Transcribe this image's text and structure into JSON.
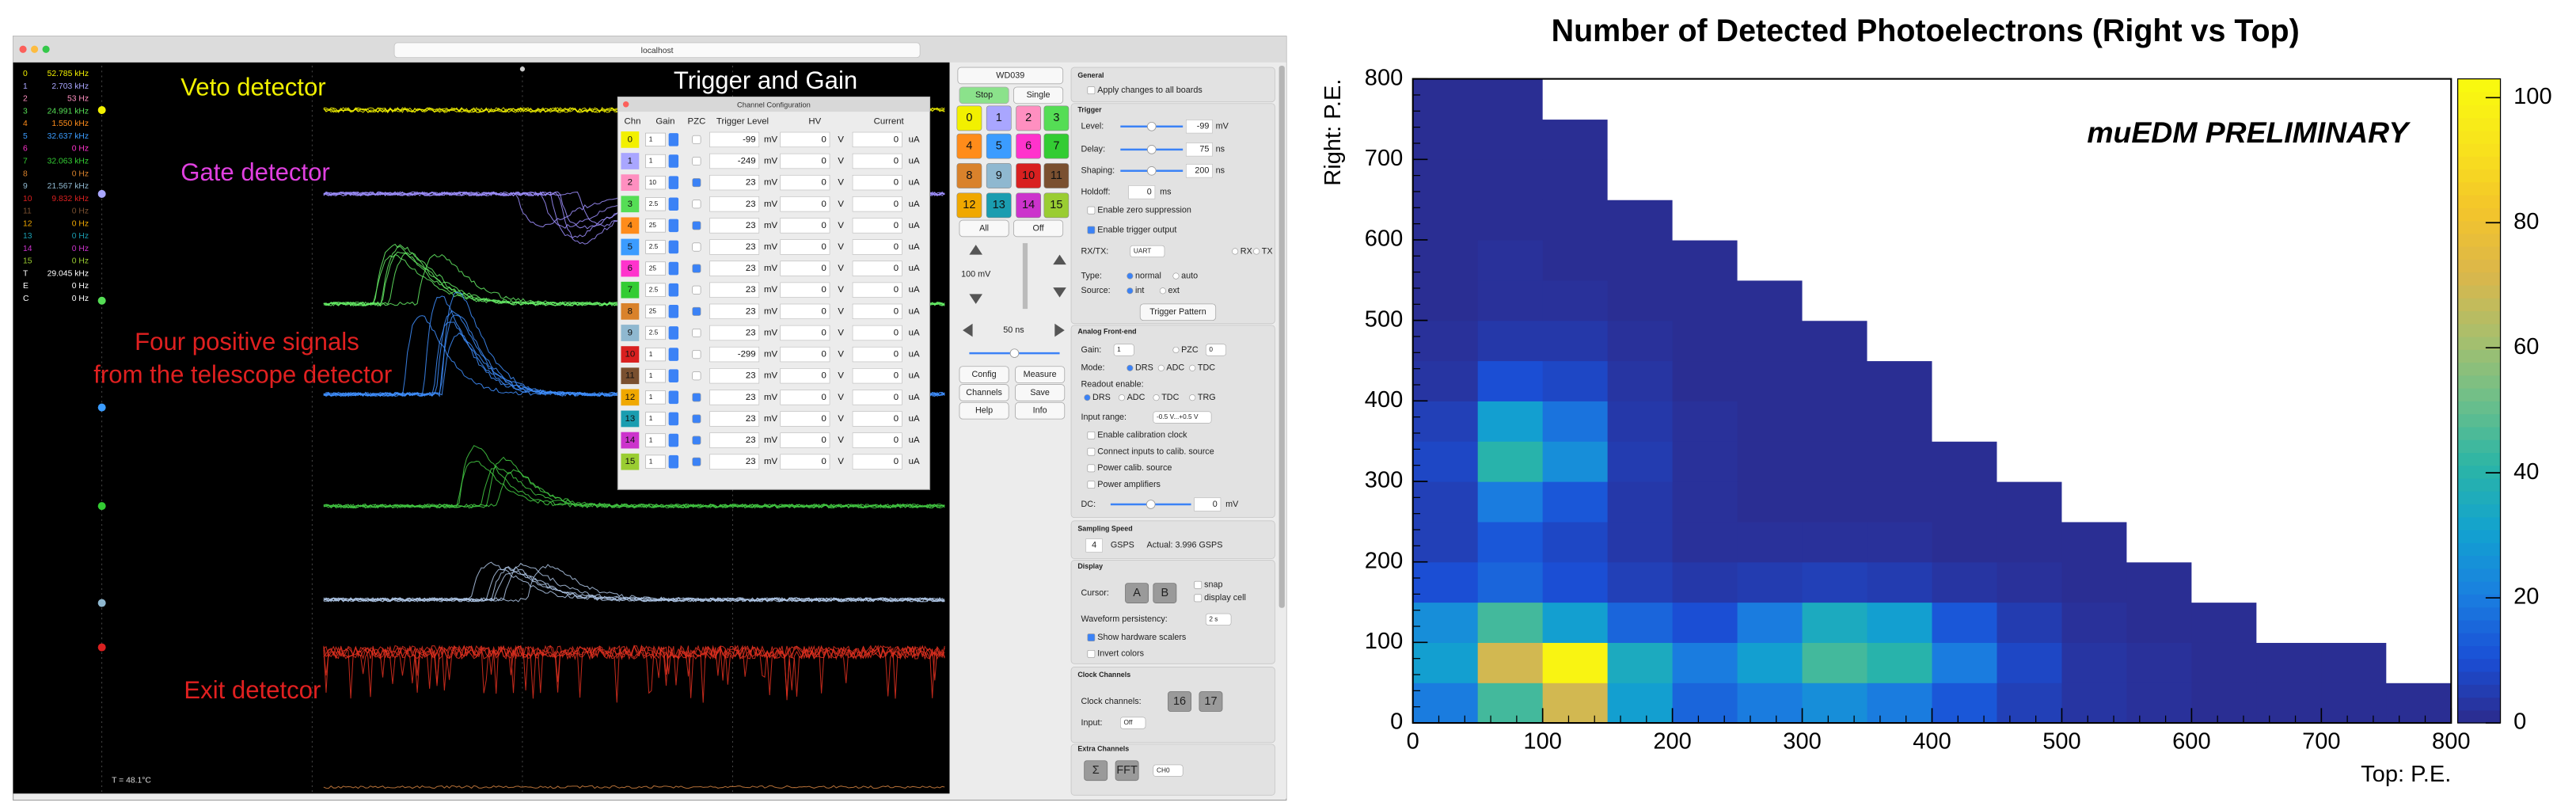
{
  "screenshot": {
    "browser": {
      "url": "localhost"
    },
    "labels": {
      "veto": "Veto detector",
      "gate": "Gate detector",
      "telescope_1": "Four positive signals",
      "telescope_2": "from the telescope detector",
      "exit": "Exit detetcor",
      "trigger_and_gain": "Trigger and Gain",
      "temperature": "T = 48.1°C"
    },
    "channel_colors": [
      "#f2f000",
      "#a9a6ff",
      "#ff8fc0",
      "#55dd55",
      "#ff8c1a",
      "#3b9cff",
      "#ff33cc",
      "#33cc33",
      "#d9822b",
      "#8fb8d0",
      "#d92020",
      "#7a5030",
      "#f0a800",
      "#1a9db0",
      "#cc33cc",
      "#9acd32"
    ],
    "rates": [
      [
        "0",
        "52.785 kHz"
      ],
      [
        "1",
        "2.703 kHz"
      ],
      [
        "2",
        "53 Hz"
      ],
      [
        "3",
        "24.991 kHz"
      ],
      [
        "4",
        "1.550 kHz"
      ],
      [
        "5",
        "32.637 kHz"
      ],
      [
        "6",
        "0 Hz"
      ],
      [
        "7",
        "32.063 kHz"
      ],
      [
        "8",
        "0 Hz"
      ],
      [
        "9",
        "21.567 kHz"
      ],
      [
        "10",
        "9.832 kHz"
      ],
      [
        "11",
        "0 Hz"
      ],
      [
        "12",
        "0 Hz"
      ],
      [
        "13",
        "0 Hz"
      ],
      [
        "14",
        "0 Hz"
      ],
      [
        "15",
        "0 Hz"
      ],
      [
        "T",
        "29.045 kHz"
      ],
      [
        "E",
        "0 Hz"
      ],
      [
        "C",
        "0 Hz"
      ]
    ],
    "config": {
      "title": "Channel Configuration",
      "headers": [
        "Chn",
        "Gain",
        "PZC",
        "Trigger Level",
        "HV",
        "Current"
      ],
      "rows": [
        [
          "0",
          "1",
          "-99",
          "mV",
          "0",
          "V",
          "0",
          "uA"
        ],
        [
          "1",
          "1",
          "-249",
          "mV",
          "0",
          "V",
          "0",
          "uA"
        ],
        [
          "2",
          "10",
          "23",
          "mV",
          "0",
          "V",
          "0",
          "uA"
        ],
        [
          "3",
          "2.5",
          "23",
          "mV",
          "0",
          "V",
          "0",
          "uA"
        ],
        [
          "4",
          "25",
          "23",
          "mV",
          "0",
          "V",
          "0",
          "uA"
        ],
        [
          "5",
          "2.5",
          "23",
          "mV",
          "0",
          "V",
          "0",
          "uA"
        ],
        [
          "6",
          "25",
          "23",
          "mV",
          "0",
          "V",
          "0",
          "uA"
        ],
        [
          "7",
          "2.5",
          "23",
          "mV",
          "0",
          "V",
          "0",
          "uA"
        ],
        [
          "8",
          "25",
          "23",
          "mV",
          "0",
          "V",
          "0",
          "uA"
        ],
        [
          "9",
          "2.5",
          "23",
          "mV",
          "0",
          "V",
          "0",
          "uA"
        ],
        [
          "10",
          "1",
          "-299",
          "mV",
          "0",
          "V",
          "0",
          "uA"
        ],
        [
          "11",
          "1",
          "23",
          "mV",
          "0",
          "V",
          "0",
          "uA"
        ],
        [
          "12",
          "1",
          "23",
          "mV",
          "0",
          "V",
          "0",
          "uA"
        ],
        [
          "13",
          "1",
          "23",
          "mV",
          "0",
          "V",
          "0",
          "uA"
        ],
        [
          "14",
          "1",
          "23",
          "mV",
          "0",
          "V",
          "0",
          "uA"
        ],
        [
          "15",
          "1",
          "23",
          "mV",
          "0",
          "V",
          "0",
          "uA"
        ]
      ],
      "pzc": [
        false,
        false,
        true,
        false,
        true,
        false,
        true,
        false,
        true,
        false,
        false,
        false,
        true,
        true,
        true,
        true
      ]
    },
    "control_panel": [
      "WD039",
      "Stop",
      "Single",
      "All",
      "Off",
      "100 mV",
      "50 ns",
      "Config",
      "Measure",
      "Channels",
      "Save",
      "Help",
      "Info",
      "General",
      "Apply changes to all boards",
      "Trigger",
      "Level:",
      "-99",
      "mV",
      "Delay:",
      "75",
      "ns",
      "Shaping:",
      "200",
      "ns",
      "Holdoff:",
      "0",
      "ms",
      "Enable zero suppression",
      "Enable trigger output",
      "RX/TX:",
      "UART",
      "RX",
      "TX",
      "Type:",
      "normal",
      "auto",
      "Source:",
      "int",
      "ext",
      "Trigger Pattern",
      "Analog Front-end",
      "Gain:",
      "1",
      "PZC",
      "0",
      "Mode:",
      "DRS",
      "ADC",
      "TDC",
      "Readout enable:",
      "DRS",
      "ADC",
      "TDC",
      "TRG",
      "Input range:",
      "-0.5 V...+0.5 V",
      "Enable calibration clock",
      "Connect inputs to calib. source",
      "Power calib. source",
      "Power amplifiers",
      "DC:",
      "0",
      "mV",
      "Sampling Speed",
      "4",
      "GSPS",
      "Actual: 3.996 GSPS",
      "Display",
      "Cursor:",
      "A",
      "B",
      "snap",
      "display cell",
      "Waveform persistency:",
      "2 s",
      "Show hardware scalers",
      "Invert colors",
      "Clock Channels",
      "Clock channels:",
      "16",
      "17",
      "Input:",
      "Off",
      "Extra Channels",
      "Σ",
      "FFT",
      "CH0"
    ]
  },
  "chart_data": {
    "type": "heatmap",
    "title": "Number of Detected Photoelectrons (Right vs Top)",
    "annotation": "muEDM PRELIMINARY",
    "x_label": "Top: P.E.",
    "y_label": "Right: P.E.",
    "xbins": [
      0,
      50,
      100,
      150,
      200,
      250,
      300,
      350,
      400,
      450,
      500,
      550,
      600,
      650,
      700,
      750,
      800
    ],
    "ybins": [
      0,
      50,
      100,
      150,
      200,
      250,
      300,
      350,
      400,
      450,
      500,
      550,
      600,
      650,
      700,
      750,
      800
    ],
    "values": [
      [
        20,
        45,
        70,
        30,
        15,
        20,
        25,
        20,
        12,
        6,
        3,
        2,
        1,
        1,
        1,
        1
      ],
      [
        30,
        70,
        100,
        35,
        20,
        30,
        45,
        40,
        20,
        8,
        3,
        2,
        1,
        1,
        1,
        0
      ],
      [
        25,
        45,
        30,
        15,
        10,
        20,
        35,
        30,
        12,
        5,
        2,
        1,
        1,
        0,
        0,
        0
      ],
      [
        10,
        15,
        10,
        6,
        4,
        5,
        6,
        5,
        3,
        2,
        1,
        1,
        0,
        0,
        0,
        0
      ],
      [
        6,
        12,
        8,
        4,
        2,
        2,
        2,
        2,
        1,
        1,
        1,
        0,
        0,
        0,
        0,
        0
      ],
      [
        6,
        20,
        12,
        4,
        2,
        1,
        1,
        1,
        1,
        1,
        0,
        0,
        0,
        0,
        0,
        0
      ],
      [
        8,
        40,
        25,
        5,
        2,
        1,
        1,
        1,
        1,
        0,
        0,
        0,
        0,
        0,
        0,
        0
      ],
      [
        6,
        30,
        18,
        4,
        2,
        1,
        1,
        1,
        0,
        0,
        0,
        0,
        0,
        0,
        0,
        0
      ],
      [
        3,
        10,
        8,
        3,
        1,
        1,
        1,
        1,
        0,
        0,
        0,
        0,
        0,
        0,
        0,
        0
      ],
      [
        2,
        4,
        4,
        2,
        1,
        1,
        1,
        0,
        0,
        0,
        0,
        0,
        0,
        0,
        0,
        0
      ],
      [
        1,
        2,
        2,
        1,
        1,
        1,
        0,
        0,
        0,
        0,
        0,
        0,
        0,
        0,
        0,
        0
      ],
      [
        1,
        2,
        1,
        1,
        1,
        0,
        0,
        0,
        0,
        0,
        0,
        0,
        0,
        0,
        0,
        0
      ],
      [
        1,
        1,
        1,
        1,
        0,
        0,
        0,
        0,
        0,
        0,
        0,
        0,
        0,
        0,
        0,
        0
      ],
      [
        1,
        1,
        1,
        0,
        0,
        0,
        0,
        0,
        0,
        0,
        0,
        0,
        0,
        0,
        0,
        0
      ],
      [
        1,
        1,
        1,
        0,
        0,
        0,
        0,
        0,
        0,
        0,
        0,
        0,
        0,
        0,
        0,
        0
      ],
      [
        1,
        1,
        0,
        0,
        0,
        0,
        0,
        0,
        0,
        0,
        0,
        0,
        0,
        0,
        0,
        0
      ]
    ],
    "xlim": [
      0,
      800
    ],
    "ylim": [
      0,
      800
    ],
    "xticks": [
      0,
      100,
      200,
      300,
      400,
      500,
      600,
      700,
      800
    ],
    "yticks": [
      0,
      100,
      200,
      300,
      400,
      500,
      600,
      700,
      800
    ],
    "zlim": [
      0,
      103
    ],
    "zticks": [
      0,
      20,
      40,
      60,
      80,
      100
    ],
    "colormap": [
      "#2c2a8c",
      "#1a4fd6",
      "#1a7fe0",
      "#12a2cf",
      "#2bb5a6",
      "#6dbf8a",
      "#a9bf6c",
      "#dcb64a",
      "#f4c52a",
      "#f8e41c",
      "#f9fb0e"
    ]
  }
}
